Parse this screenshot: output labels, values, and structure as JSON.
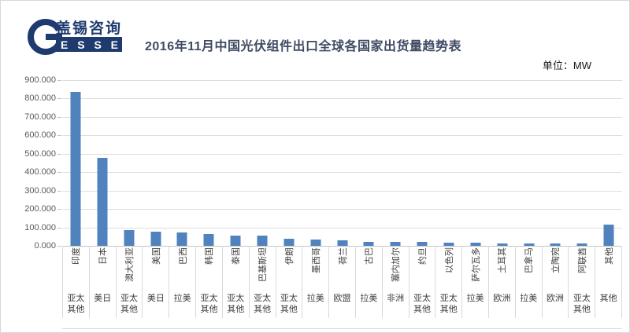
{
  "page": {
    "background": "#ffffff",
    "border_color": "#d8d8d8"
  },
  "logo": {
    "company_cn": "盖锡咨询",
    "company_en": "E S S E Y",
    "navy": "#1f3a6e"
  },
  "header": {
    "title": "2016年11月中国光伏组件出口全球各国家出货量趋势表",
    "unit_label": "单位：MW"
  },
  "chart_data": {
    "type": "bar",
    "title": "2016年11月中国光伏组件出口全球各国家出货量趋势表",
    "xlabel": "",
    "ylabel": "单位：MW",
    "ylim": [
      0,
      900
    ],
    "ytick_step": 100,
    "ytick_labels": [
      "900.000",
      "800.000",
      "700.000",
      "600.000",
      "500.000",
      "400.000",
      "300.000",
      "200.000",
      "100.000",
      "0.000"
    ],
    "grid": true,
    "legend": "none",
    "bar_color": "#5082be",
    "categories": [
      "印度",
      "日本",
      "澳大利亚",
      "美国",
      "巴西",
      "韩国",
      "泰国",
      "巴基斯坦",
      "伊朗",
      "墨西哥",
      "荷兰",
      "古巴",
      "塞内加尔",
      "约旦",
      "以色列",
      "萨尔瓦多",
      "土耳其",
      "巴拿马",
      "立陶宛",
      "阿联酋",
      "其他"
    ],
    "group_labels": [
      "亚太其他",
      "美日",
      "亚太其他",
      "美日",
      "拉美",
      "亚太其他",
      "亚太其他",
      "亚太其他",
      "亚太其他",
      "拉美",
      "欧盟",
      "拉美",
      "非洲",
      "亚太其他",
      "亚太其他",
      "拉美",
      "欧洲",
      "拉美",
      "欧洲",
      "亚太其他",
      "其他"
    ],
    "values": [
      835,
      477,
      87,
      75,
      74,
      62,
      57,
      57,
      40,
      36,
      29,
      23,
      22,
      21,
      17,
      17,
      13,
      13,
      12,
      13,
      115
    ]
  }
}
